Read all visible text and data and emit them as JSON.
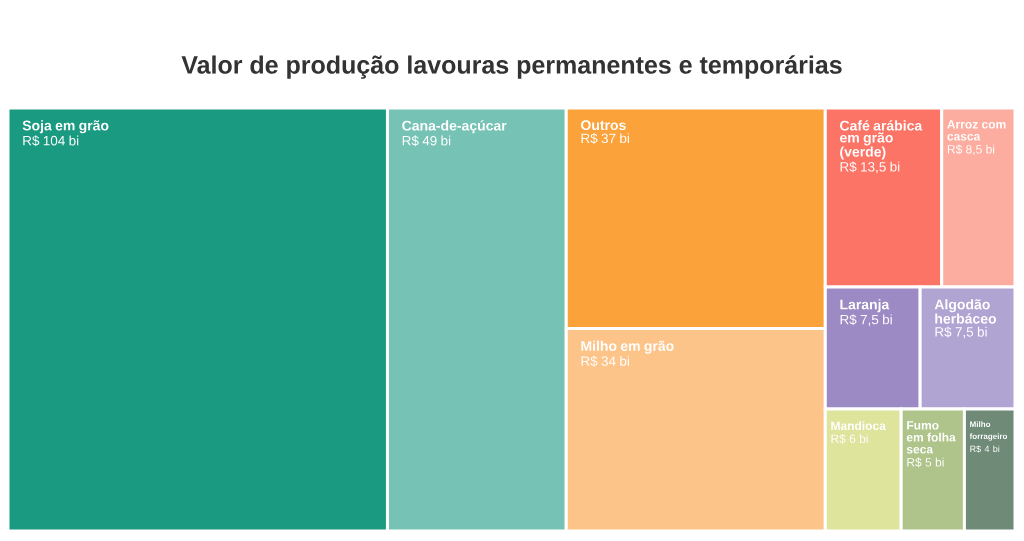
{
  "chart_data": {
    "type": "other",
    "title": "Valor de produção lavouras permanentes e temporárias",
    "categories": [
      "Soja em grão",
      "Cana-de-açúcar",
      "Outros",
      "Milho em grão",
      "Café arábica em grão (verde)",
      "Arroz com casca",
      "Laranja",
      "Algodão herbáceo",
      "Mandioca",
      "Fumo em folha seca",
      "Milho forrageiro"
    ],
    "values": [
      104,
      49,
      37,
      34,
      13.5,
      8.5,
      7.5,
      7.5,
      6,
      5,
      4
    ],
    "value_labels": [
      "R$ 104 bi",
      "R$ 49 bi",
      "R$ 37 bi",
      "R$ 34 bi",
      "R$ 13,5 bi",
      "R$ 8,5 bi",
      "R$ 7,5 bi",
      "R$ 7,5 bi",
      "R$ 6 bi",
      "R$ 5 bi",
      "R$ 4 bi"
    ],
    "colors": [
      "#1a9a80",
      "#76c3b5",
      "#fba23b",
      "#fdc48a",
      "#fc7466",
      "#fdaca0",
      "#9b8ac3",
      "#b0a4d3",
      "#dee49b",
      "#aec48a",
      "#6f8b78"
    ]
  }
}
